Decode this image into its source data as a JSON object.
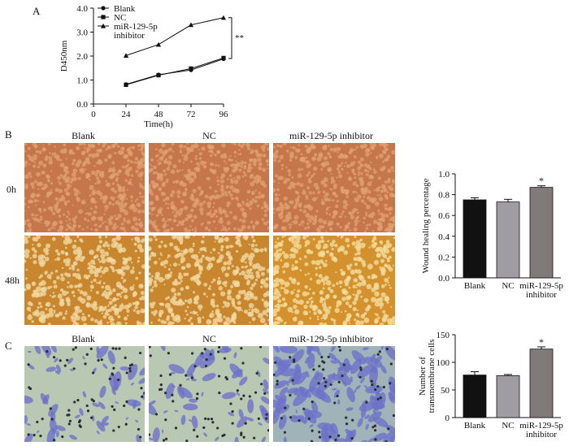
{
  "panels": {
    "a": "A",
    "b": "B",
    "c": "C"
  },
  "images": {
    "columns": [
      "Blank",
      "NC",
      "miR-129-5p inhibitor"
    ],
    "wound_rows": [
      "0h",
      "48h"
    ]
  },
  "colors": {
    "wound_bg": "#c5764a",
    "wound_cells": "#e0a070",
    "wound_48_bg": "#d4922f",
    "transwell_bg": "#b9c8b2",
    "transwell_cells": "#6e72c8",
    "bar_blank": "#111111",
    "bar_nc": "#a09da2",
    "bar_inhibitor": "#807a7a"
  },
  "chart_data": [
    {
      "type": "line",
      "x": [
        24,
        48,
        72,
        96
      ],
      "xticks": [
        "0",
        "24",
        "48",
        "72",
        "96"
      ],
      "xlim": [
        0,
        96
      ],
      "ylim": [
        0,
        4
      ],
      "yticks": [
        "0.0",
        "1.0",
        "2.0",
        "3.0",
        "4.0"
      ],
      "xlabel": "Time(h)",
      "ylabel": "D450nm",
      "series": [
        {
          "name": "Blank",
          "marker": "circle",
          "values": [
            0.82,
            1.22,
            1.42,
            1.88
          ]
        },
        {
          "name": "NC",
          "marker": "square",
          "values": [
            0.8,
            1.2,
            1.48,
            1.92
          ]
        },
        {
          "name": "miR-129-5p inhibitor",
          "marker": "triangle",
          "values": [
            2.02,
            2.48,
            3.3,
            3.6
          ]
        }
      ],
      "annotation": "**",
      "legend": "top-left"
    },
    {
      "type": "bar",
      "categories": [
        "Blank",
        "NC",
        "miR-129-5p inhibitor"
      ],
      "values": [
        0.75,
        0.73,
        0.87
      ],
      "errors": [
        0.02,
        0.025,
        0.015
      ],
      "ylabel": "Wound healing percentage",
      "ylim": [
        0,
        1.0
      ],
      "yticks": [
        "0.0",
        "0.2",
        "0.4",
        "0.6",
        "0.8",
        "1.0"
      ],
      "annotation": "*"
    },
    {
      "type": "bar",
      "categories": [
        "Blank",
        "NC",
        "miR-129-5p inhibitor"
      ],
      "values": [
        77,
        76,
        124
      ],
      "errors": [
        6,
        2,
        4
      ],
      "ylabel": "Number of transmembrane cells",
      "ylim": [
        0,
        150
      ],
      "yticks": [
        "0",
        "50",
        "100",
        "150"
      ],
      "annotation": "*"
    }
  ]
}
